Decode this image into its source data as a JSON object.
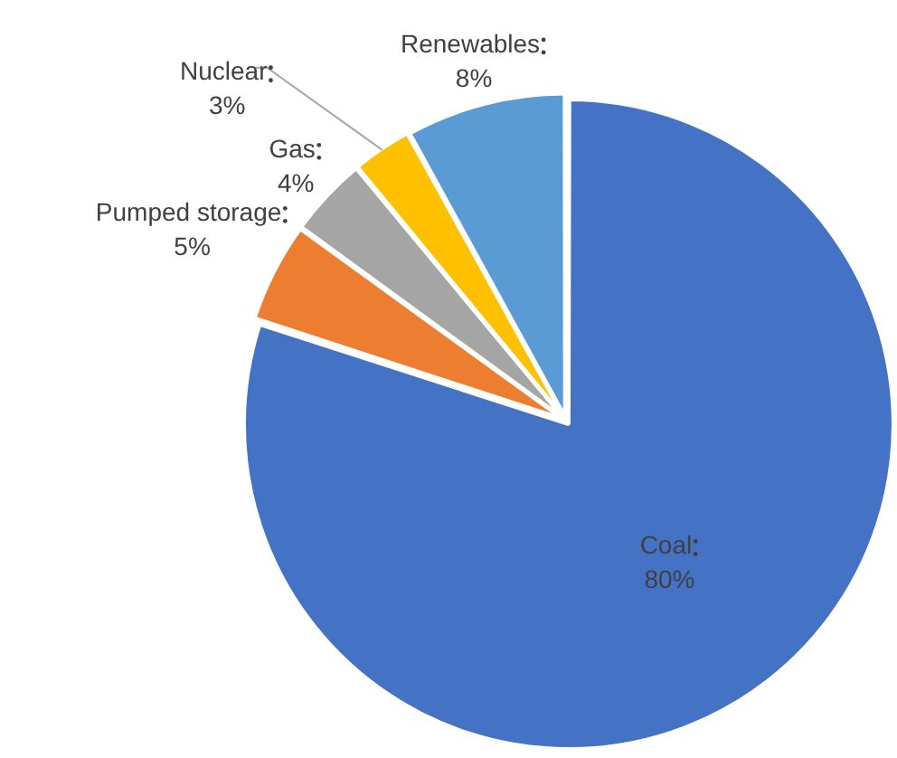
{
  "chart_data": {
    "type": "pie",
    "categories": [
      "Coal",
      "Pumped storage",
      "Gas",
      "Nuclear",
      "Renewables"
    ],
    "values": [
      80,
      5,
      4,
      3,
      8
    ],
    "value_labels": [
      "80%",
      "5%",
      "4%",
      "3%",
      "8%"
    ],
    "colors": [
      "#4472c4",
      "#ed7d31",
      "#a5a5a5",
      "#ffc000",
      "#5b9bd5"
    ]
  }
}
